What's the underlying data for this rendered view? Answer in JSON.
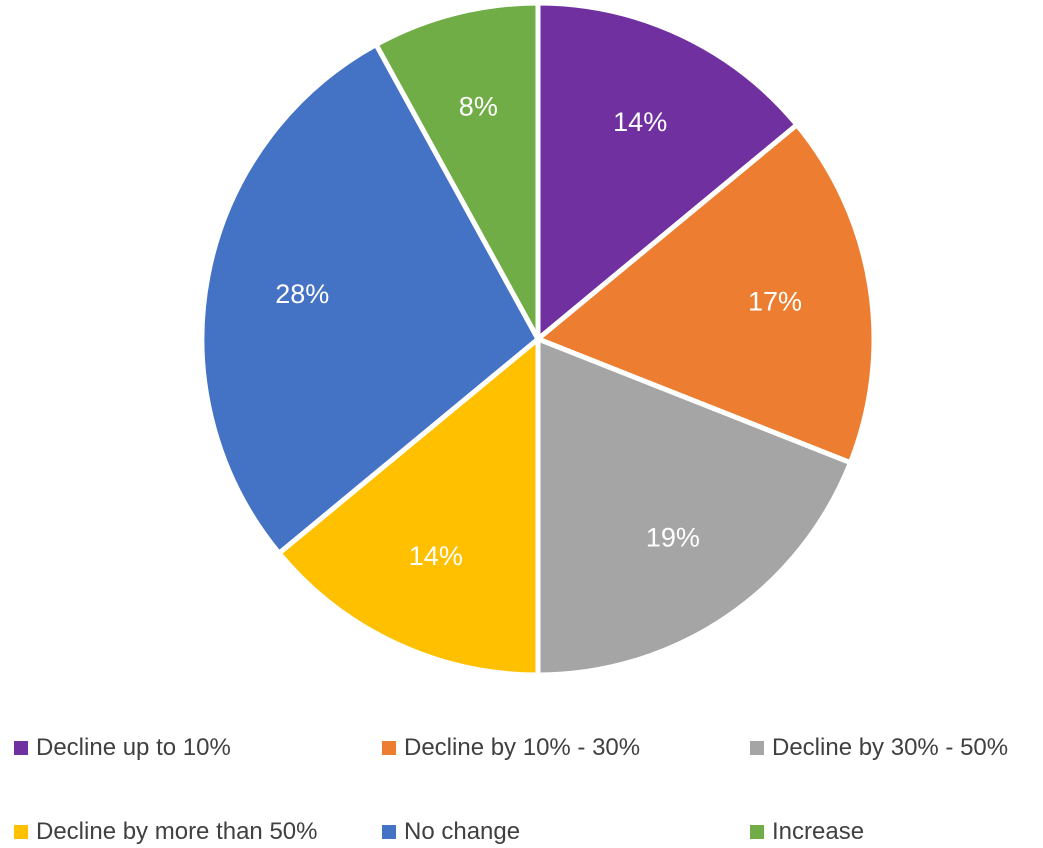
{
  "chart_data": {
    "type": "pie",
    "title": "",
    "slices": [
      {
        "name": "Decline up to 10%",
        "value": 14,
        "label": "14%",
        "color": "#7030A0"
      },
      {
        "name": "Decline by 10% - 30%",
        "value": 17,
        "label": "17%",
        "color": "#ED7D31"
      },
      {
        "name": "Decline by 30% - 50%",
        "value": 19,
        "label": "19%",
        "color": "#A5A5A5"
      },
      {
        "name": "Decline by more than 50%",
        "value": 14,
        "label": "14%",
        "color": "#FFC000"
      },
      {
        "name": "No change",
        "value": 28,
        "label": "28%",
        "color": "#4472C4"
      },
      {
        "name": "Increase",
        "value": 8,
        "label": "8%",
        "color": "#70AD47"
      }
    ],
    "legend_position": "bottom",
    "start_angle": "12 o'clock",
    "direction": "clockwise"
  }
}
